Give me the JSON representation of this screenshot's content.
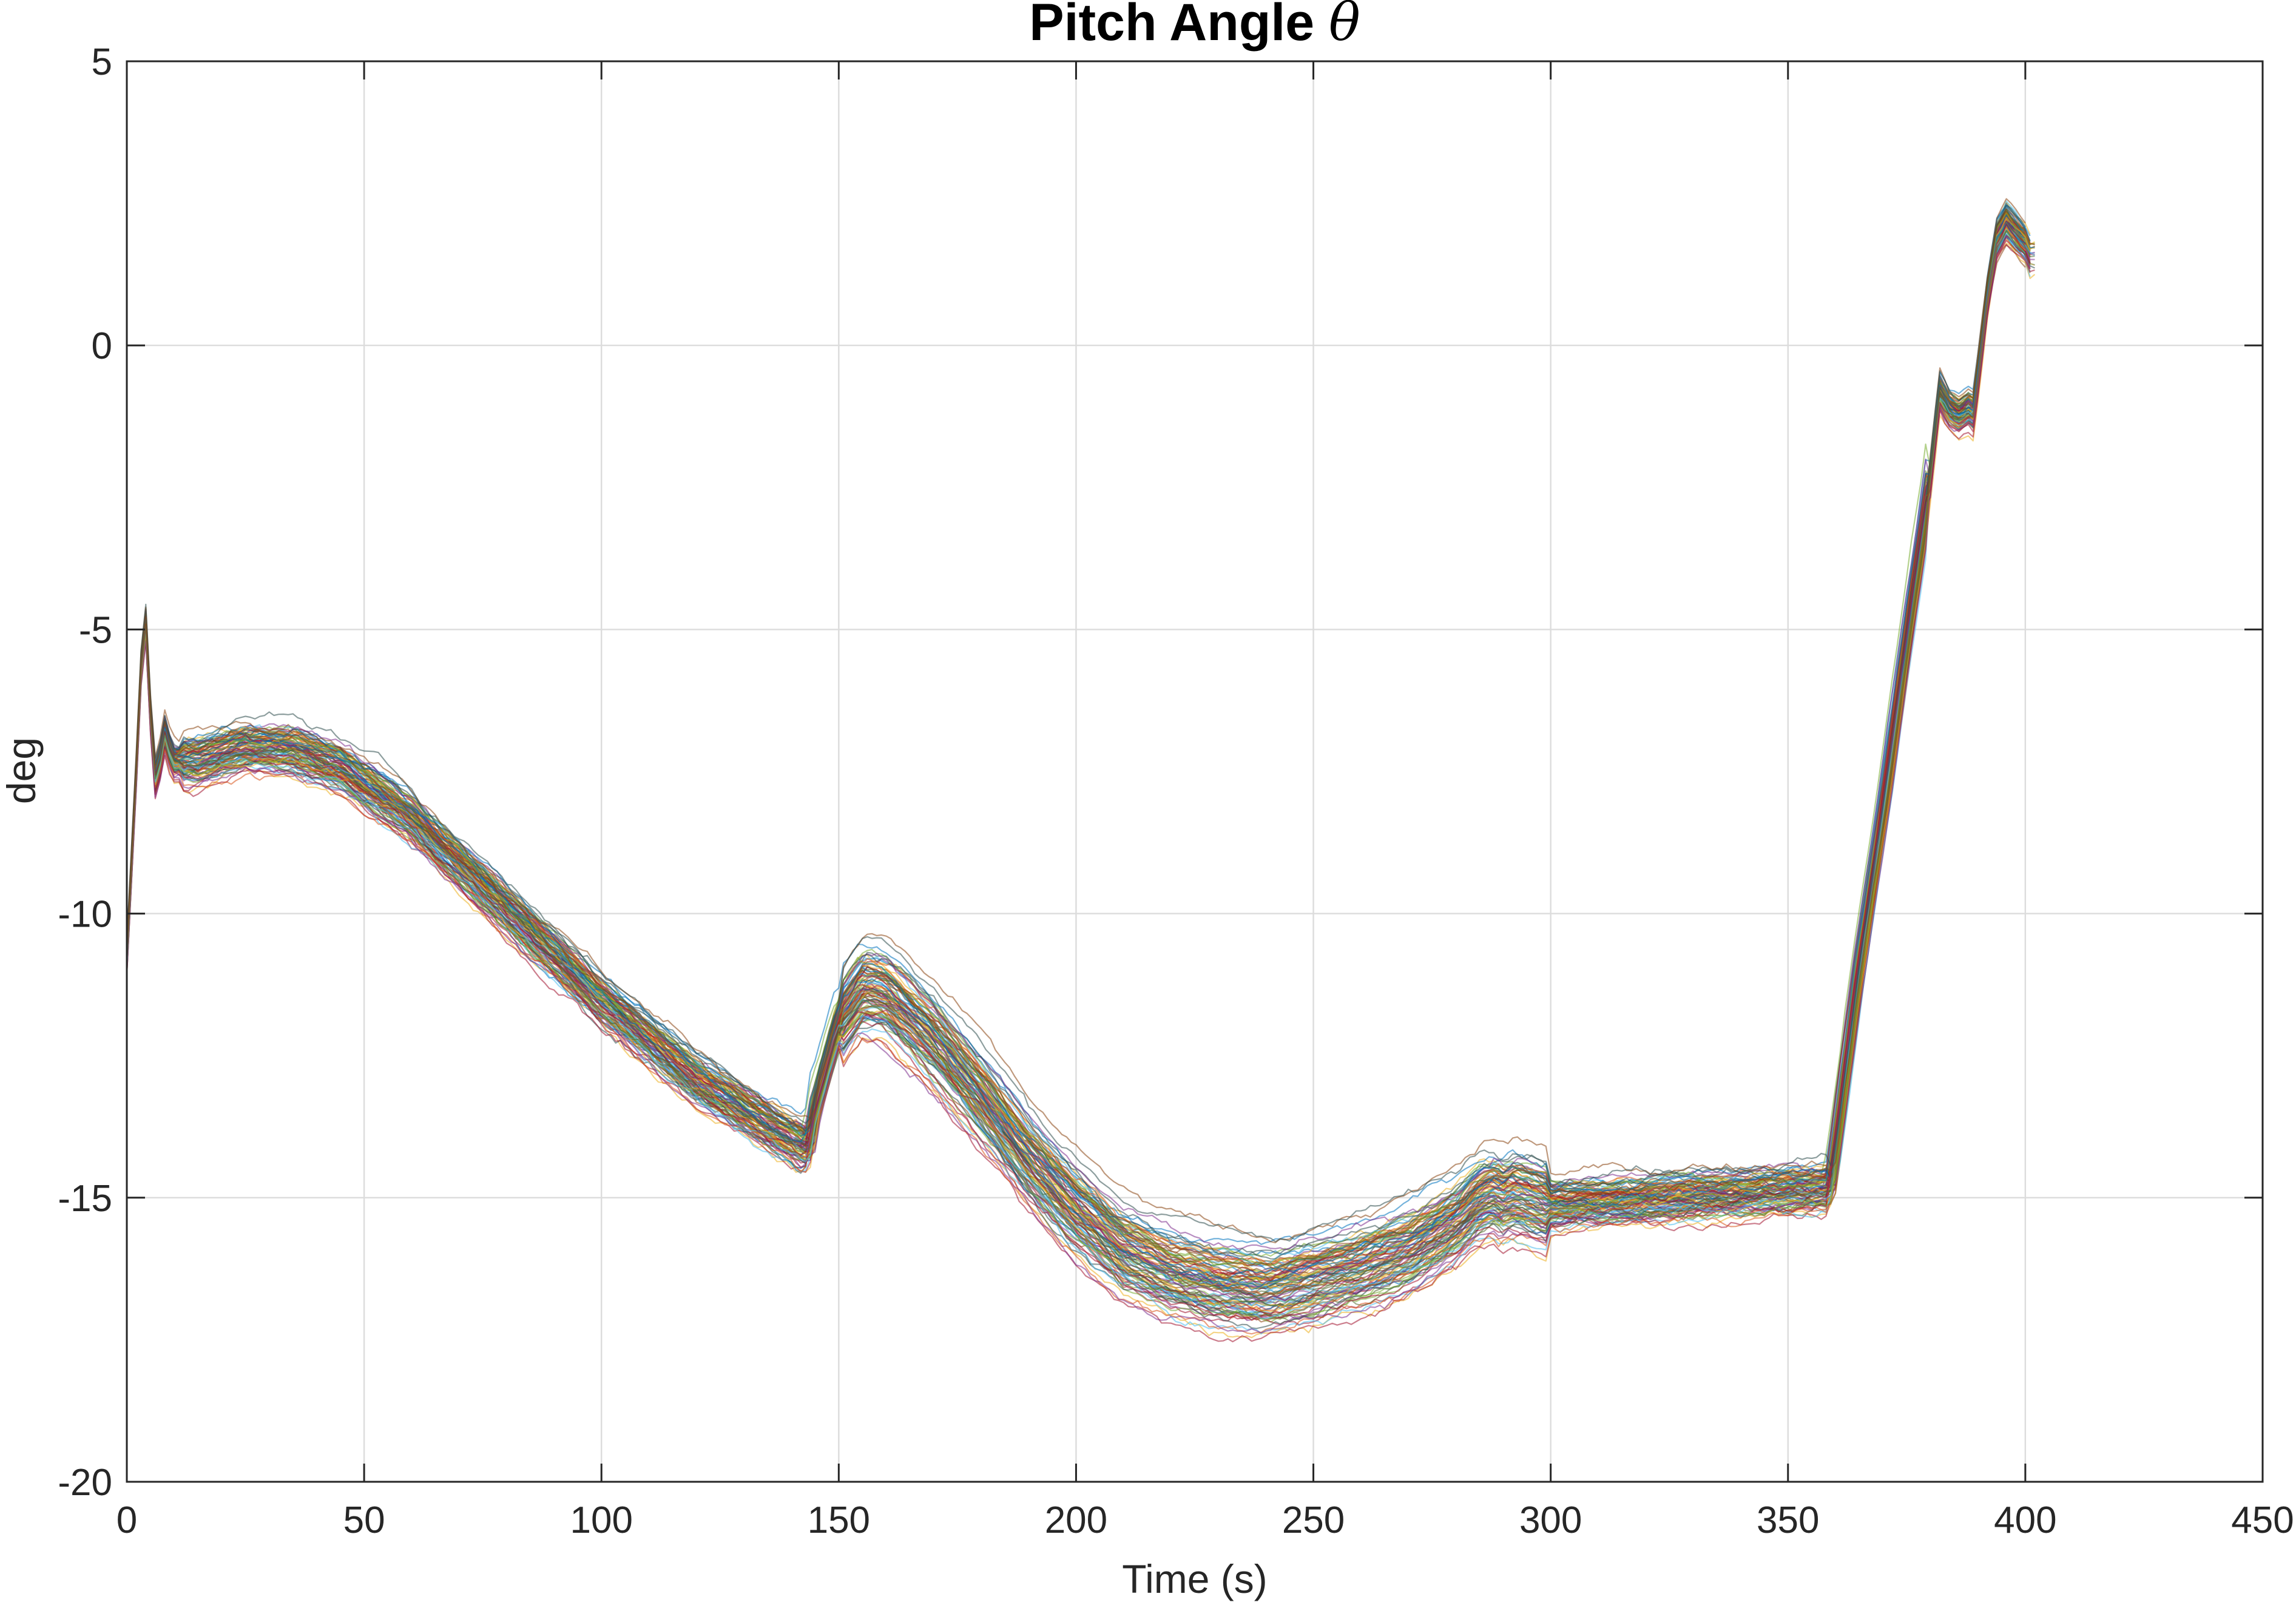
{
  "chart_data": {
    "type": "line",
    "title": "Pitch Angle",
    "title_symbol": "θ",
    "xlabel": "Time (s)",
    "ylabel": "deg",
    "xlim": [
      0,
      450
    ],
    "ylim": [
      -20,
      5
    ],
    "xticks": [
      0,
      50,
      100,
      150,
      200,
      250,
      300,
      350,
      400,
      450
    ],
    "yticks": [
      5,
      0,
      -5,
      -10,
      -15,
      -20
    ],
    "grid": true,
    "legend": "none",
    "colors": [
      "#0072BD",
      "#D95319",
      "#EDB120",
      "#7E2F8E",
      "#77AC30",
      "#4DBEEE",
      "#A2142F",
      "#2F4F4F",
      "#556B2F",
      "#8B4513"
    ],
    "mean_curve": {
      "x": [
        0,
        2,
        3,
        4,
        5,
        6,
        7,
        8,
        9,
        10,
        15,
        25,
        35,
        45,
        60,
        80,
        100,
        120,
        135,
        143,
        144,
        145,
        150,
        155,
        160,
        170,
        180,
        190,
        200,
        210,
        220,
        230,
        240,
        250,
        260,
        270,
        280,
        285,
        288,
        290,
        292,
        300,
        320,
        340,
        358,
        359,
        365,
        370,
        375,
        380,
        382,
        384,
        386,
        388,
        389,
        390,
        392,
        394,
        396,
        398,
        400,
        401
      ],
      "y": [
        -10.8,
        -7.5,
        -5.7,
        -4.9,
        -6.5,
        -7.6,
        -7.3,
        -6.8,
        -7.1,
        -7.3,
        -7.3,
        -7.05,
        -7.1,
        -7.4,
        -8.3,
        -9.9,
        -11.5,
        -12.9,
        -13.7,
        -14.1,
        -14.0,
        -13.4,
        -11.9,
        -11.3,
        -11.4,
        -12.2,
        -13.2,
        -14.3,
        -15.2,
        -15.9,
        -16.3,
        -16.5,
        -16.6,
        -16.4,
        -16.2,
        -15.9,
        -15.4,
        -15.0,
        -14.9,
        -15.0,
        -14.9,
        -15.1,
        -15.0,
        -14.9,
        -14.8,
        -14.8,
        -11.0,
        -8.2,
        -5.2,
        -2.3,
        -0.8,
        -1.1,
        -1.2,
        -1.1,
        -1.15,
        -0.5,
        0.9,
        1.9,
        2.2,
        2.0,
        1.8,
        1.6
      ]
    },
    "series_count": 100,
    "spread_deg": 0.6
  }
}
